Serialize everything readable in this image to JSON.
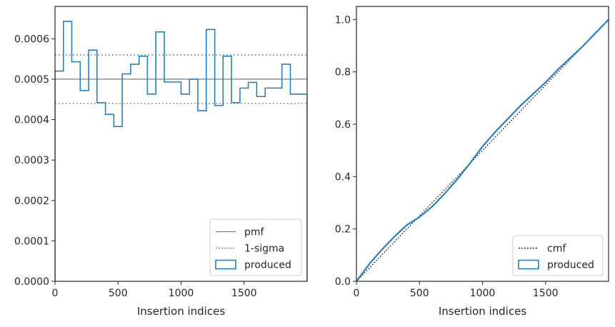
{
  "chart_data": [
    {
      "type": "step",
      "xlabel": "Insertion indices",
      "ylabel": "",
      "xlim": [
        0,
        2000
      ],
      "ylim": [
        0,
        0.00068
      ],
      "xticks": [
        0,
        500,
        1000,
        1500
      ],
      "yticks": [
        0,
        0.0001,
        0.0002,
        0.0003,
        0.0004,
        0.0005,
        0.0006
      ],
      "ytick_labels": [
        "0.0000",
        "0.0001",
        "0.0002",
        "0.0003",
        "0.0004",
        "0.0005",
        "0.0006"
      ],
      "legend_position": "lower-right",
      "series": [
        {
          "name": "pmf",
          "style": "solid",
          "color": "#7f7f7f",
          "value": 0.0005
        },
        {
          "name": "1-sigma",
          "style": "dotted",
          "color": "#7f7f7f",
          "values": [
            0.00056,
            0.00044
          ]
        },
        {
          "name": "produced",
          "style": "step",
          "color": "#2a7fb8",
          "bin_edges": [
            0,
            67,
            133,
            200,
            267,
            333,
            400,
            467,
            533,
            600,
            667,
            733,
            800,
            867,
            933,
            1000,
            1067,
            1133,
            1200,
            1267,
            1333,
            1400,
            1467,
            1533,
            1600,
            1667,
            1733,
            1800,
            1867,
            1933,
            2000
          ],
          "values": [
            0.00052,
            0.000643,
            0.000543,
            0.000472,
            0.000572,
            0.000442,
            0.000413,
            0.000383,
            0.000513,
            0.000537,
            0.000557,
            0.000463,
            0.000617,
            0.000493,
            0.000493,
            0.000463,
            0.0005,
            0.000422,
            0.000623,
            0.000435,
            0.000557,
            0.000442,
            0.000478,
            0.000492,
            0.000457,
            0.000478,
            0.000478,
            0.000537,
            0.000463,
            0.000463
          ]
        }
      ]
    },
    {
      "type": "line",
      "xlabel": "Insertion indices",
      "ylabel": "",
      "xlim": [
        0,
        2000
      ],
      "ylim": [
        0,
        1.05
      ],
      "xticks": [
        0,
        500,
        1000,
        1500
      ],
      "yticks": [
        0,
        0.2,
        0.4,
        0.6,
        0.8,
        1.0
      ],
      "ytick_labels": [
        "0.0",
        "0.2",
        "0.4",
        "0.6",
        "0.8",
        "1.0"
      ],
      "legend_position": "lower-right",
      "series": [
        {
          "name": "cmf",
          "style": "dotted",
          "color": "#000000",
          "x": [
            0,
            2000
          ],
          "y": [
            0,
            1.0
          ]
        },
        {
          "name": "produced",
          "style": "solid",
          "color": "#2a7fb8",
          "x": [
            0,
            100,
            200,
            300,
            400,
            500,
            600,
            700,
            800,
            900,
            1000,
            1100,
            1200,
            1300,
            1400,
            1500,
            1600,
            1700,
            1800,
            1900,
            2000
          ],
          "y": [
            0,
            0.065,
            0.12,
            0.17,
            0.215,
            0.245,
            0.285,
            0.335,
            0.39,
            0.45,
            0.515,
            0.57,
            0.62,
            0.67,
            0.715,
            0.76,
            0.81,
            0.855,
            0.9,
            0.95,
            1.0
          ]
        }
      ]
    }
  ]
}
